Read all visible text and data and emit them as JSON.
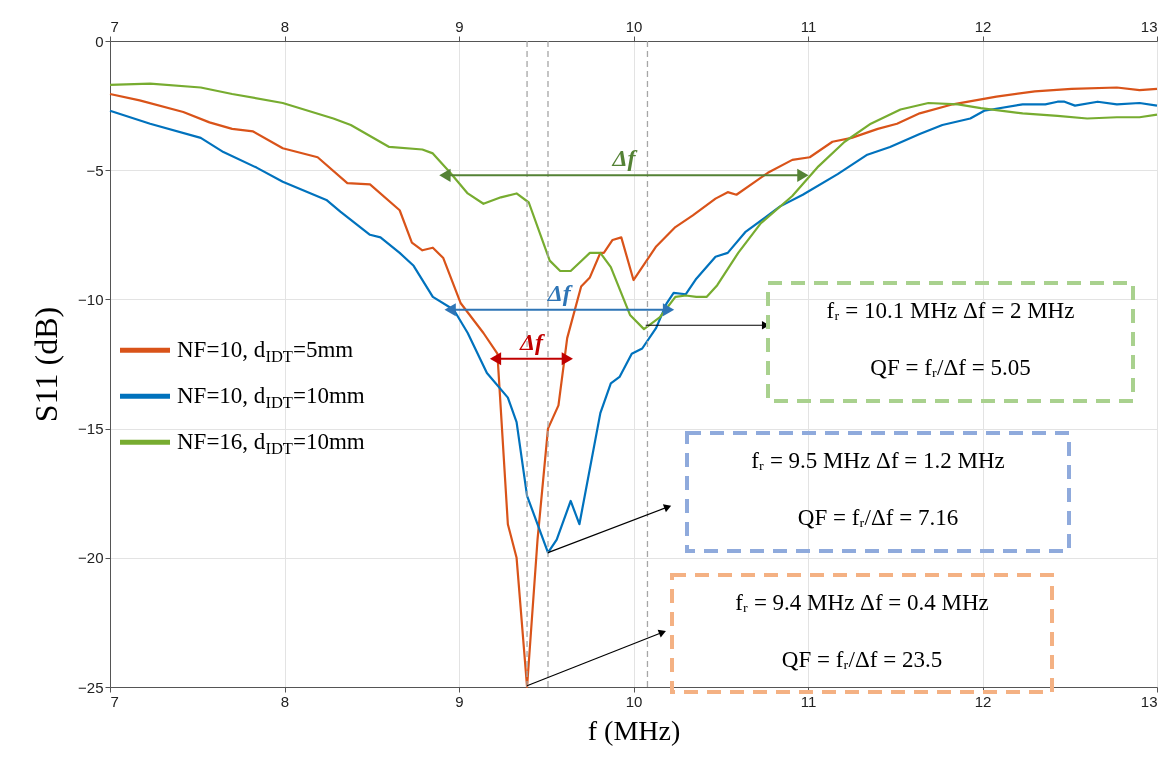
{
  "chart_data": {
    "type": "line",
    "xlabel": "f (MHz)",
    "ylabel": "S11 (dB)",
    "xlim": [
      7,
      13
    ],
    "xticks": [
      7,
      8,
      9,
      10,
      11,
      12,
      13
    ],
    "x2lim": [
      7,
      13
    ],
    "x2ticks": [
      7,
      8,
      9,
      10,
      11,
      12,
      13
    ],
    "ylim": [
      -25,
      0
    ],
    "yticks": [
      -25,
      -20,
      -15,
      -10,
      -5,
      0
    ],
    "grid": true,
    "legend": "left",
    "line_style": "solid",
    "series": [
      {
        "name": "NF=10, d$_{IDT}$=5mm",
        "color": "#d95319",
        "x": [
          7.0,
          7.17,
          7.42,
          7.57,
          7.7,
          7.82,
          7.99,
          8.19,
          8.36,
          8.49,
          8.66,
          8.73,
          8.79,
          8.85,
          8.91,
          9.01,
          9.14,
          9.22,
          9.28,
          9.33,
          9.39,
          9.45,
          9.51,
          9.57,
          9.62,
          9.7,
          9.75,
          9.81,
          9.83,
          9.88,
          9.93,
          10.0,
          10.13,
          10.24,
          10.34,
          10.47,
          10.54,
          10.59,
          10.77,
          10.91,
          11.01,
          11.14,
          11.25,
          11.4,
          11.51,
          11.64,
          11.83,
          12.08,
          12.3,
          12.51,
          12.77,
          12.9,
          13.0
        ],
        "values": [
          -2.05,
          -2.3,
          -2.75,
          -3.15,
          -3.4,
          -3.5,
          -4.15,
          -4.5,
          -5.5,
          -5.55,
          -6.55,
          -7.8,
          -8.1,
          -8.0,
          -8.4,
          -10.15,
          -11.3,
          -12.1,
          -18.7,
          -20.0,
          -25.0,
          -19.3,
          -15.0,
          -14.1,
          -11.5,
          -9.5,
          -9.15,
          -8.2,
          -8.2,
          -7.7,
          -7.6,
          -9.25,
          -7.95,
          -7.2,
          -6.75,
          -6.1,
          -5.85,
          -5.95,
          -5.1,
          -4.6,
          -4.5,
          -3.9,
          -3.75,
          -3.4,
          -3.2,
          -2.8,
          -2.45,
          -2.15,
          -1.95,
          -1.85,
          -1.8,
          -1.9,
          -1.85
        ]
      },
      {
        "name": "NF=10, d$_{IDT}$=10mm",
        "color": "#0072bd",
        "x": [
          7.0,
          7.23,
          7.52,
          7.65,
          7.84,
          7.99,
          8.24,
          8.32,
          8.49,
          8.55,
          8.66,
          8.74,
          8.85,
          8.97,
          9.05,
          9.16,
          9.28,
          9.33,
          9.39,
          9.51,
          9.56,
          9.64,
          9.69,
          9.81,
          9.87,
          9.92,
          9.99,
          10.05,
          10.13,
          10.19,
          10.23,
          10.3,
          10.36,
          10.47,
          10.54,
          10.64,
          10.84,
          10.97,
          11.17,
          11.34,
          11.47,
          11.64,
          11.77,
          11.93,
          12.01,
          12.23,
          12.36,
          12.43,
          12.47,
          12.53,
          12.66,
          12.77,
          12.9,
          13.0
        ],
        "values": [
          -2.7,
          -3.2,
          -3.75,
          -4.3,
          -4.9,
          -5.45,
          -6.15,
          -6.6,
          -7.5,
          -7.6,
          -8.2,
          -8.7,
          -9.9,
          -10.4,
          -11.3,
          -12.85,
          -13.8,
          -14.75,
          -17.6,
          -19.8,
          -19.3,
          -17.8,
          -18.7,
          -14.4,
          -13.25,
          -13.0,
          -12.1,
          -11.9,
          -11.1,
          -10.15,
          -9.75,
          -9.8,
          -9.2,
          -8.35,
          -8.2,
          -7.4,
          -6.4,
          -5.95,
          -5.15,
          -4.4,
          -4.1,
          -3.6,
          -3.25,
          -3.0,
          -2.7,
          -2.45,
          -2.45,
          -2.35,
          -2.35,
          -2.5,
          -2.35,
          -2.45,
          -2.4,
          -2.5
        ]
      },
      {
        "name": "NF=16, d$_{IDT}$=10mm",
        "color": "#77ac30",
        "x": [
          7.0,
          7.23,
          7.52,
          7.7,
          7.99,
          8.28,
          8.38,
          8.6,
          8.79,
          8.85,
          8.95,
          9.05,
          9.14,
          9.24,
          9.33,
          9.4,
          9.52,
          9.58,
          9.64,
          9.75,
          9.81,
          9.87,
          9.98,
          10.06,
          10.15,
          10.24,
          10.3,
          10.36,
          10.42,
          10.48,
          10.6,
          10.73,
          10.91,
          11.06,
          11.21,
          11.36,
          11.53,
          11.69,
          11.86,
          11.99,
          12.23,
          12.43,
          12.6,
          12.77,
          12.9,
          13.0
        ],
        "values": [
          -1.7,
          -1.65,
          -1.8,
          -2.05,
          -2.4,
          -3.0,
          -3.25,
          -4.1,
          -4.2,
          -4.35,
          -5.1,
          -5.9,
          -6.3,
          -6.05,
          -5.9,
          -6.25,
          -8.5,
          -8.9,
          -8.9,
          -8.2,
          -8.2,
          -8.75,
          -10.6,
          -11.15,
          -10.7,
          -9.9,
          -9.85,
          -9.9,
          -9.9,
          -9.45,
          -8.2,
          -7.05,
          -6.0,
          -4.85,
          -3.9,
          -3.2,
          -2.65,
          -2.4,
          -2.45,
          -2.6,
          -2.8,
          -2.9,
          -3.0,
          -2.95,
          -2.95,
          -2.85
        ]
      },
      {
        "name": "Δf",
        "type": "line",
        "marker": "triangle",
        "color": "#548235",
        "x": [
          8.93,
          10.96
        ],
        "values": [
          -5.2,
          -5.2
        ]
      },
      {
        "name": "Δf",
        "type": "line",
        "marker": "triangle",
        "color": "#2e75b6",
        "x": [
          8.96,
          10.19
        ],
        "values": [
          -10.4,
          -10.4
        ]
      },
      {
        "name": "Δf",
        "type": "line",
        "marker": "triangle",
        "color": "#c00000",
        "x": [
          9.22,
          9.61
        ],
        "values": [
          -12.3,
          -12.3
        ]
      },
      {
        "type": "line",
        "marker": "triangle",
        "color": "#000000",
        "x": [
          10.07,
          10.75
        ],
        "values": [
          -11.0,
          -11.0
        ]
      },
      {
        "type": "line",
        "marker": "triangle",
        "color": "#000000",
        "x": [
          9.51,
          10.19
        ],
        "values": [
          -19.8,
          -18.05
        ]
      },
      {
        "type": "line",
        "marker": "triangle",
        "color": "#000000",
        "x": [
          9.39,
          10.16
        ],
        "values": [
          -24.95,
          -22.9
        ]
      }
    ],
    "ref_lines": [
      {
        "axis": "x",
        "value": 9.39,
        "color": "#a6a6a6",
        "line_style": "dashed"
      },
      {
        "axis": "x",
        "value": 9.51,
        "color": "#a6a6a6",
        "line_style": "dashed"
      },
      {
        "axis": "x",
        "value": 10.08,
        "color": "#a6a6a6",
        "line_style": "dashed"
      }
    ],
    "annotations": [
      "fᵣ = 10.1 MHz     Δf = 2 MHz",
      "QF = fᵣ/Δf = 5.05",
      "fᵣ = 9.5 MHz     Δf = 1.2 MHz",
      "QF = fᵣ/Δf = 7.16",
      "fᵣ = 9.4 MHz    Δf = 0.4 MHz",
      "QF = fᵣ/Δf = 23.5"
    ]
  }
}
